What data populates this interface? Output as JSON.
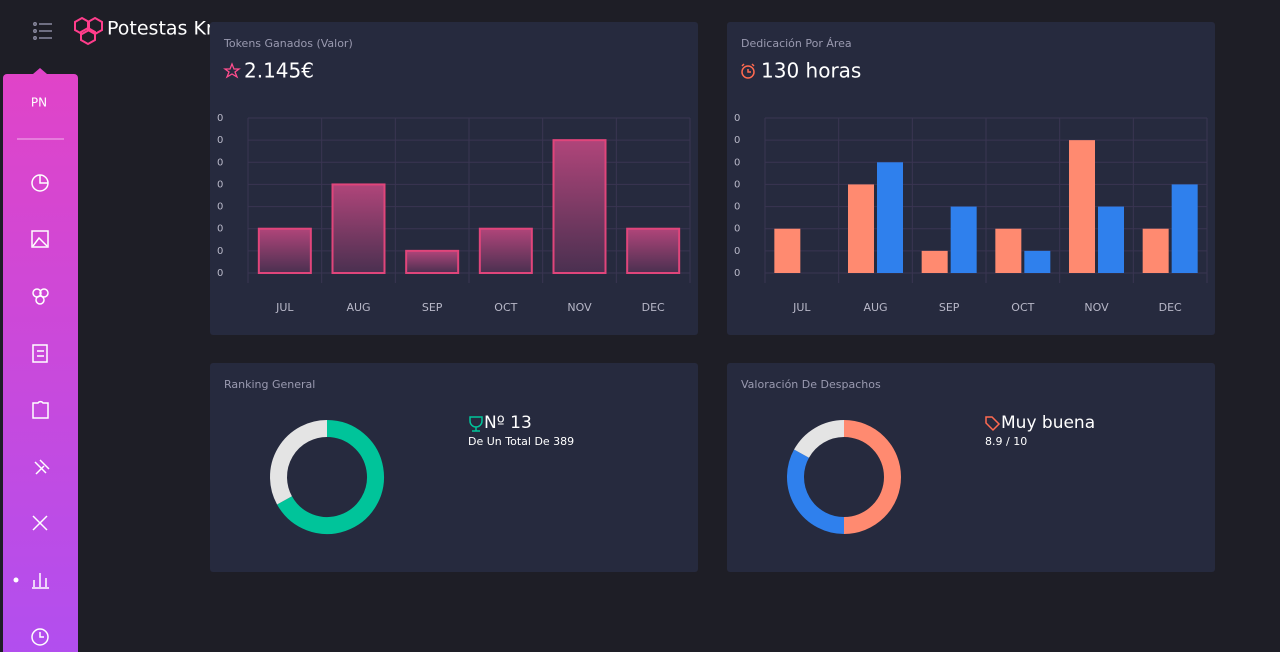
{
  "header": {
    "brand": "Potestas Know"
  },
  "sidebar": {
    "avatar": "PN"
  },
  "chart_data": [
    {
      "type": "bar",
      "title": "Tokens Ganados (Valor)",
      "subtitle": "2.145€",
      "categories": [
        "JUL",
        "AUG",
        "SEP",
        "OCT",
        "NOV",
        "DEC"
      ],
      "values": [
        0.1,
        0.2,
        0.05,
        0.1,
        0.3,
        0.1
      ],
      "color": "#e0457b",
      "ylim": [
        0,
        0.35
      ],
      "yticks": [
        {
          "value": 0,
          "label": "0"
        },
        {
          "value": 0.05,
          "label": "0"
        },
        {
          "value": 0.1,
          "label": "0"
        },
        {
          "value": 0.15,
          "label": "0"
        },
        {
          "value": 0.2,
          "label": "0"
        },
        {
          "value": 0.25,
          "label": "0"
        },
        {
          "value": 0.3,
          "label": "0"
        },
        {
          "value": 0.35,
          "label": "0"
        }
      ],
      "grid": true
    },
    {
      "type": "bar",
      "title": "Dedicación Por Área",
      "subtitle": "130 horas",
      "categories": [
        "JUL",
        "AUG",
        "SEP",
        "OCT",
        "NOV",
        "DEC"
      ],
      "series": [
        {
          "color": "#ff8a70",
          "values": [
            0.1,
            0.2,
            0.05,
            0.1,
            0.3,
            0.1
          ]
        },
        {
          "color": "#2f80ed",
          "values": [
            0,
            0.25,
            0.15,
            0.05,
            0.15,
            0.2
          ]
        }
      ],
      "ylim": [
        0,
        0.35
      ],
      "yticks": [
        {
          "value": 0,
          "label": "0"
        },
        {
          "value": 0.05,
          "label": "0"
        },
        {
          "value": 0.1,
          "label": "0"
        },
        {
          "value": 0.15,
          "label": "0"
        },
        {
          "value": 0.2,
          "label": "0"
        },
        {
          "value": 0.25,
          "label": "0"
        },
        {
          "value": 0.3,
          "label": "0"
        },
        {
          "value": 0.35,
          "label": "0"
        }
      ],
      "grid": true
    },
    {
      "type": "pie",
      "title": "Ranking General",
      "donut": true,
      "values": [
        67,
        33
      ],
      "colors": [
        "#00c49a",
        "#e4e4e4"
      ],
      "annotations": [
        "Nº 13",
        "De Un Total De 389"
      ]
    },
    {
      "type": "pie",
      "title": "Valoración De Despachos",
      "donut": true,
      "values": [
        50,
        33,
        17
      ],
      "colors": [
        "#ff8a70",
        "#2f80ed",
        "#e4e4e4"
      ],
      "annotations": [
        "Muy buena",
        "8.9 / 10"
      ]
    }
  ]
}
